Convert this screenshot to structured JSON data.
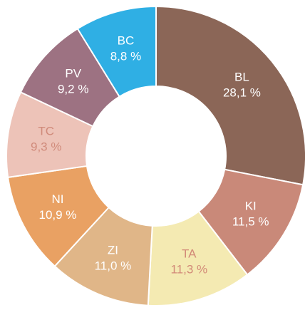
{
  "chart_data": {
    "type": "donut",
    "categories": [
      "BL",
      "KI",
      "TA",
      "ZI",
      "NI",
      "TC",
      "PV",
      "BC"
    ],
    "values": [
      28.1,
      11.5,
      11.3,
      11.0,
      10.9,
      9.3,
      9.2,
      8.8
    ],
    "value_labels": [
      "28,1 %",
      "11,5 %",
      "11,3 %",
      "11,0 %",
      "10,9 %",
      "9,3 %",
      "9,2 %",
      "8,8 %"
    ],
    "colors": [
      "#8b6657",
      "#c98979",
      "#f4eab2",
      "#e0b688",
      "#e9a163",
      "#edc3b8",
      "#9d7282",
      "#2fafe4"
    ],
    "label_colors": [
      "#ffffff",
      "#ffffff",
      "#d28a78",
      "#ffffff",
      "#ffffff",
      "#d08a7a",
      "#ffffff",
      "#ffffff"
    ]
  }
}
